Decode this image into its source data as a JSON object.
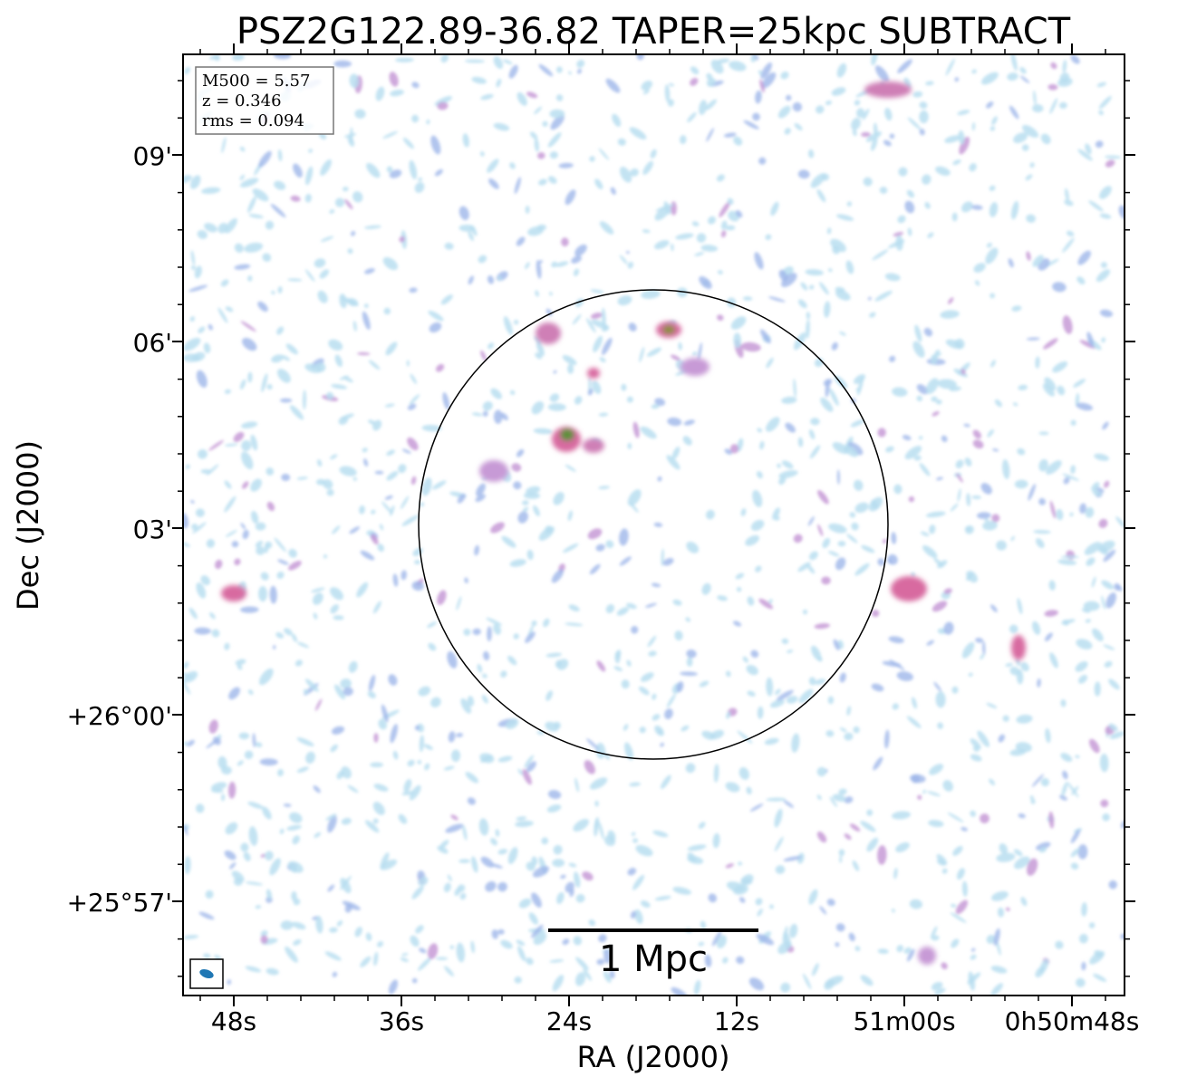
{
  "figure": {
    "title": "PSZ2G122.89-36.82 TAPER=25kpc SUBTRACT",
    "xlabel": "RA (J2000)",
    "ylabel": "Dec (J2000)",
    "x_ticks": [
      "48s",
      "36s",
      "24s",
      "12s",
      "51m00s",
      "0h50m48s"
    ],
    "y_ticks": [
      "09'",
      "06'",
      "03'",
      "+26°00'",
      "+25°57'"
    ],
    "info_box": {
      "mass": "M500 = 5.57",
      "redshift": "z = 0.346",
      "rms": "rms = 0.094"
    },
    "scale_bar": {
      "label": "1 Mpc"
    },
    "colors": {
      "frame": "#000000",
      "noise_light": "#b9def0",
      "noise_mid": "#9fb6ea",
      "noise_purple": "#c79ad6",
      "source_pink": "#d86aa0",
      "source_core": "#6b8f3a",
      "beam": "#1f77b4"
    }
  }
}
